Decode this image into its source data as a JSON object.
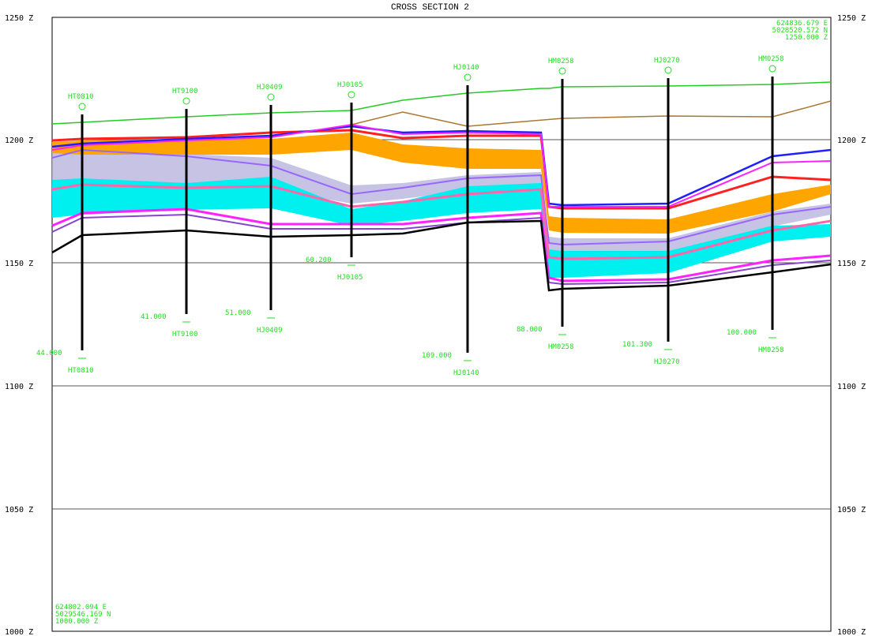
{
  "header": {
    "title": "CROSS SECTION 2"
  },
  "left_axis": {
    "labels": [
      "1250 Z",
      "1200 Z",
      "1150 Z",
      "1100 Z",
      "1050 Z",
      "1000 Z"
    ]
  },
  "right_axis": {
    "labels": [
      "1250 Z",
      "1200 Z",
      "1150 Z",
      "1100 Z",
      "1050 Z",
      "1000 Z"
    ]
  },
  "corners": {
    "top_right": [
      "624836.679 E",
      "5028520.572 N",
      "1250.000 Z"
    ],
    "bottom_left": [
      "624802.094 E",
      "5029546.169 N",
      "1000.000 Z"
    ]
  },
  "boreholes": [
    {
      "name": "HT0810",
      "depth": "44.000"
    },
    {
      "name": "HT9100",
      "depth": "41.000"
    },
    {
      "name": "HJ0409",
      "depth": "51.000"
    },
    {
      "name": "HJ0105",
      "depth": "60.200"
    },
    {
      "name": "HJ0140",
      "depth": "109.000"
    },
    {
      "name": "HM0258",
      "depth": "88.000"
    },
    {
      "name": "HJ0270",
      "depth": "101.300"
    },
    {
      "name": "HM0258",
      "depth": "100.000"
    }
  ]
}
